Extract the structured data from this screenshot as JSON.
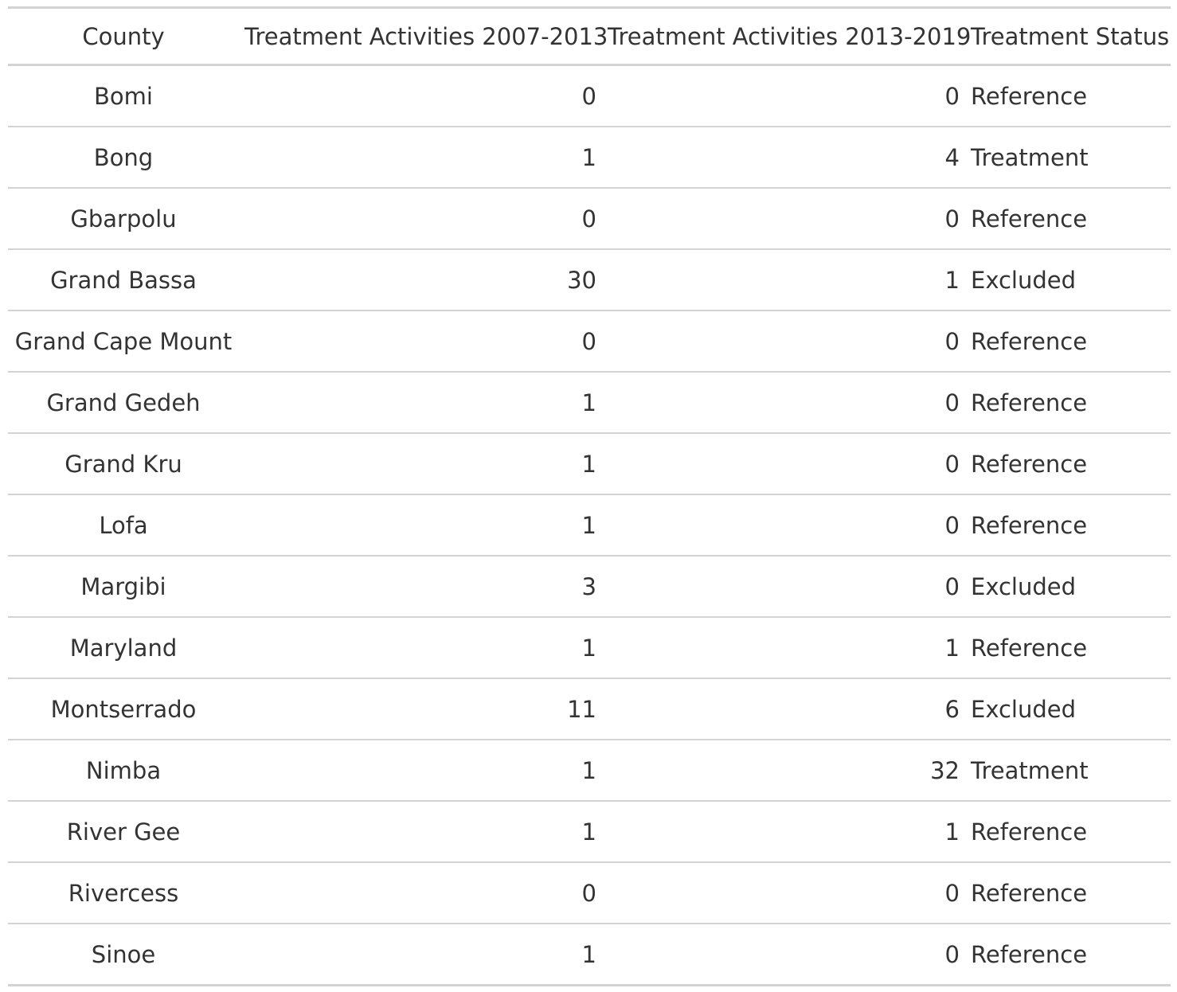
{
  "chart_data": {
    "type": "table",
    "columns": [
      "County",
      "Treatment Activities 2007-2013",
      "Treatment Activities 2013-2019",
      "Treatment Status"
    ],
    "rows": [
      [
        "Bomi",
        "0",
        "0",
        "Reference"
      ],
      [
        "Bong",
        "1",
        "4",
        "Treatment"
      ],
      [
        "Gbarpolu",
        "0",
        "0",
        "Reference"
      ],
      [
        "Grand Bassa",
        "30",
        "1",
        "Excluded"
      ],
      [
        "Grand Cape Mount",
        "0",
        "0",
        "Reference"
      ],
      [
        "Grand Gedeh",
        "1",
        "0",
        "Reference"
      ],
      [
        "Grand Kru",
        "1",
        "0",
        "Reference"
      ],
      [
        "Lofa",
        "1",
        "0",
        "Reference"
      ],
      [
        "Margibi",
        "3",
        "0",
        "Excluded"
      ],
      [
        "Maryland",
        "1",
        "1",
        "Reference"
      ],
      [
        "Montserrado",
        "11",
        "6",
        "Excluded"
      ],
      [
        "Nimba",
        "1",
        "32",
        "Treatment"
      ],
      [
        "River Gee",
        "1",
        "1",
        "Reference"
      ],
      [
        "Rivercess",
        "0",
        "0",
        "Reference"
      ],
      [
        "Sinoe",
        "1",
        "0",
        "Reference"
      ]
    ]
  }
}
